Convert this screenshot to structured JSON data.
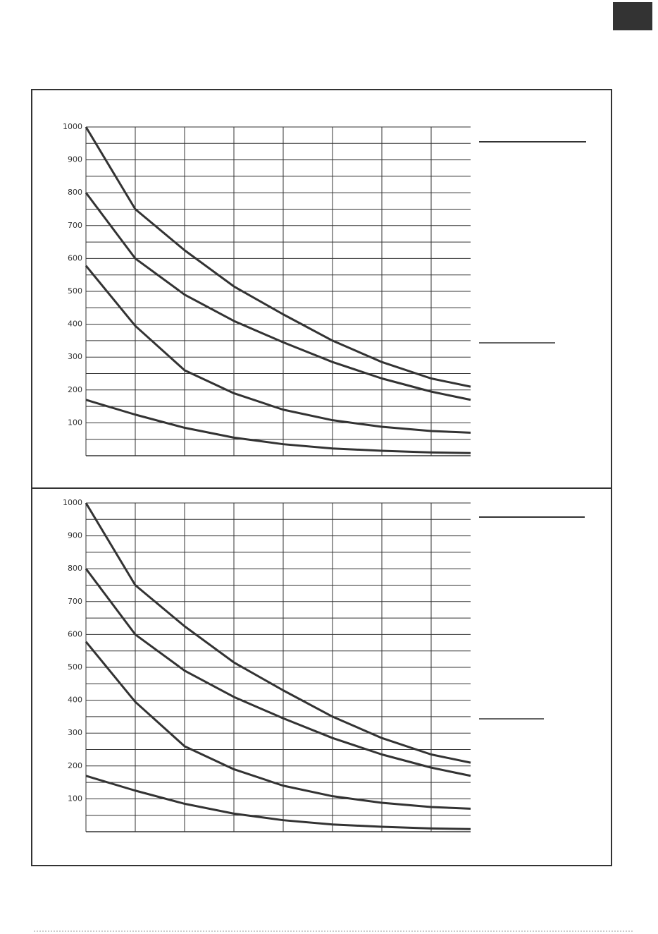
{
  "chart_data": [
    {
      "type": "line",
      "x": [
        0,
        1,
        2,
        3,
        4,
        5,
        6,
        7,
        7.8
      ],
      "xlim": [
        0,
        7.8
      ],
      "xticks": [
        0,
        1,
        2,
        3,
        4,
        5,
        6,
        7
      ],
      "ylim": [
        0,
        1000
      ],
      "yticks": [
        100,
        200,
        300,
        400,
        500,
        600,
        700,
        800,
        900,
        1000
      ],
      "yminor": [
        50,
        150,
        250,
        350,
        450,
        550,
        650,
        750,
        850,
        950
      ],
      "grid": true,
      "series": [
        {
          "color": "#333333",
          "values": [
            1000,
            750,
            625,
            515,
            430,
            350,
            285,
            235,
            210
          ]
        },
        {
          "color": "#333333",
          "values": [
            800,
            600,
            490,
            410,
            345,
            285,
            235,
            195,
            170
          ]
        },
        {
          "color": "#333333",
          "values": [
            578,
            395,
            260,
            190,
            140,
            108,
            88,
            75,
            70
          ]
        },
        {
          "color": "#333333",
          "values": [
            170,
            125,
            85,
            55,
            35,
            22,
            15,
            10,
            8
          ]
        }
      ]
    },
    {
      "type": "line",
      "x": [
        0,
        1,
        2,
        3,
        4,
        5,
        6,
        7,
        7.8
      ],
      "xlim": [
        0,
        7.8
      ],
      "xticks": [
        0,
        1,
        2,
        3,
        4,
        5,
        6,
        7
      ],
      "ylim": [
        0,
        1000
      ],
      "yticks": [
        100,
        200,
        300,
        400,
        500,
        600,
        700,
        800,
        900,
        1000
      ],
      "yminor": [
        50,
        150,
        250,
        350,
        450,
        550,
        650,
        750,
        850,
        950
      ],
      "grid": true,
      "series": [
        {
          "color": "#333333",
          "values": [
            1000,
            750,
            625,
            515,
            430,
            350,
            285,
            235,
            210
          ]
        },
        {
          "color": "#333333",
          "values": [
            800,
            600,
            490,
            410,
            345,
            285,
            235,
            195,
            170
          ]
        },
        {
          "color": "#333333",
          "values": [
            578,
            395,
            260,
            190,
            140,
            108,
            88,
            75,
            70
          ]
        },
        {
          "color": "#333333",
          "values": [
            170,
            125,
            85,
            55,
            35,
            22,
            15,
            10,
            8
          ]
        }
      ]
    }
  ]
}
